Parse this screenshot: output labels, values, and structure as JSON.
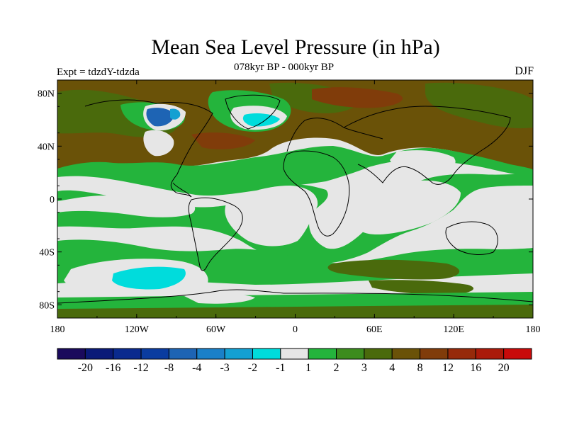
{
  "header": {
    "title": "Mean Sea Level Pressure (in hPa)",
    "subtitle": "078kyr BP - 000kyr BP",
    "left_label": "Expt = tdzdY-tdzda",
    "right_label": "DJF"
  },
  "axes": {
    "lat_ticks": [
      "80N",
      "40N",
      "0",
      "40S",
      "80S"
    ],
    "lon_ticks": [
      "180",
      "120W",
      "60W",
      "0",
      "60E",
      "120E",
      "180"
    ]
  },
  "colorbar": {
    "colors": [
      "#1a0a5c",
      "#0a1a78",
      "#0a2a8e",
      "#0a3ca0",
      "#1e64b4",
      "#1a80c8",
      "#14a0d2",
      "#00dcdc",
      "#e6e6e6",
      "#24b43c",
      "#3c8c1e",
      "#4a6a0c",
      "#6a5208",
      "#803c0a",
      "#962a0a",
      "#aa1a0a",
      "#c80a0a"
    ],
    "labels": [
      "-20",
      "-16",
      "-12",
      "-8",
      "-4",
      "-3",
      "-2",
      "-1",
      "1",
      "2",
      "3",
      "4",
      "8",
      "12",
      "16",
      "20"
    ]
  },
  "map_colors": {
    "ocean_neutral": "#e6e6e6",
    "green": "#24b43c",
    "olive": "#4a6a0c",
    "brown": "#6a5208",
    "dark_brown": "#803c0a",
    "cyan": "#00dcdc",
    "blue": "#1e64b4"
  }
}
